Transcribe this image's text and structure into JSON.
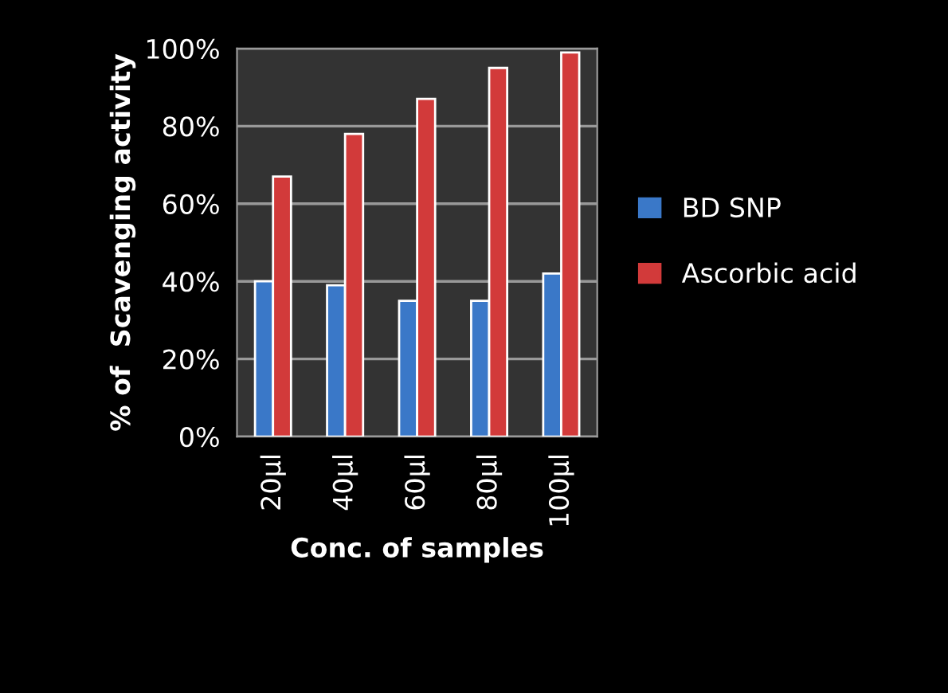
{
  "chart_data": {
    "type": "bar",
    "xlabel": "Conc. of samples",
    "ylabel": "% of  Scavenging activity",
    "categories": [
      "20µl",
      "40µl",
      "60µl",
      "80µl",
      "100µl"
    ],
    "series": [
      {
        "name": "BD SNP",
        "color": "#3a78c8",
        "values": [
          40,
          39,
          35,
          35,
          42
        ]
      },
      {
        "name": "Ascorbic acid",
        "color": "#d23a3a",
        "values": [
          67,
          78,
          87,
          95,
          99
        ]
      }
    ],
    "ylim": [
      0,
      100
    ],
    "yticks": [
      {
        "value": 0,
        "label": "0%"
      },
      {
        "value": 20,
        "label": "20%"
      },
      {
        "value": 40,
        "label": "40%"
      },
      {
        "value": 60,
        "label": "60%"
      },
      {
        "value": 80,
        "label": "80%"
      },
      {
        "value": 100,
        "label": "100%"
      }
    ],
    "grid": "y",
    "legend": "right"
  }
}
